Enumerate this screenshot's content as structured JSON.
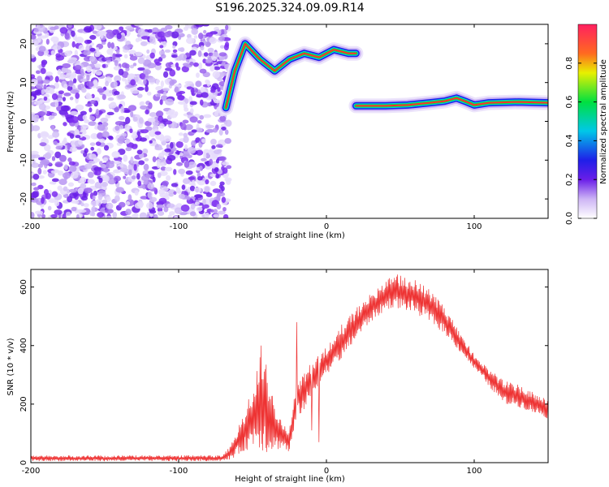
{
  "title": "S196.2025.324.09.09.R14",
  "colors": {
    "snr_line": "#ee3333",
    "cmap": [
      "#ffffff",
      "#d8c8f8",
      "#7b2cf0",
      "#1f1fe8",
      "#00c0e0",
      "#00e040",
      "#f0f000",
      "#ff3030"
    ]
  },
  "chart_data": [
    {
      "type": "heatmap",
      "xlabel": "Height of straight line (km)",
      "ylabel": "Frequency (Hz)",
      "xlim": [
        -200,
        150
      ],
      "ylim": [
        -25,
        25
      ],
      "xticks": [
        -200,
        -100,
        0,
        100
      ],
      "yticks": [
        -20,
        -10,
        0,
        10,
        20
      ],
      "colorbar": {
        "label": "Normalized spectral amplitude",
        "range": [
          0,
          1
        ],
        "ticks": [
          "0.0",
          "0.2",
          "0.4",
          "0.6",
          "0.8"
        ]
      },
      "noise_region_x": [
        -200,
        -70
      ],
      "signal_tracks": [
        {
          "name": "upper",
          "points": [
            [
              -68,
              3.5
            ],
            [
              -62,
              13
            ],
            [
              -55,
              20
            ],
            [
              -45,
              16
            ],
            [
              -35,
              13
            ],
            [
              -25,
              16
            ],
            [
              -15,
              17.5
            ],
            [
              -5,
              16.5
            ],
            [
              5,
              18.5
            ],
            [
              15,
              17.5
            ],
            [
              20,
              17.5
            ]
          ]
        },
        {
          "name": "lower",
          "points": [
            [
              20,
              4
            ],
            [
              30,
              4
            ],
            [
              40,
              4
            ],
            [
              55,
              4.2
            ],
            [
              70,
              4.8
            ],
            [
              80,
              5.2
            ],
            [
              88,
              6
            ],
            [
              95,
              5
            ],
            [
              100,
              4.2
            ],
            [
              110,
              4.8
            ],
            [
              130,
              5
            ],
            [
              150,
              4.8
            ]
          ]
        }
      ]
    },
    {
      "type": "line",
      "xlabel": "Height of straight line (km)",
      "ylabel": "SNR (10 * v/v)",
      "xlim": [
        -200,
        150
      ],
      "ylim": [
        0,
        660
      ],
      "xticks": [
        -200,
        -100,
        0,
        100
      ],
      "yticks": [
        0,
        200,
        400,
        600
      ],
      "envelope": {
        "x": [
          -200,
          -70,
          -65,
          -55,
          -48,
          -44,
          -40,
          -35,
          -30,
          -25,
          -20,
          -15,
          -10,
          -5,
          0,
          5,
          10,
          20,
          30,
          40,
          45,
          50,
          60,
          70,
          80,
          90,
          100,
          110,
          120,
          130,
          140,
          150
        ],
        "min": [
          5,
          5,
          10,
          40,
          60,
          40,
          30,
          40,
          50,
          30,
          150,
          180,
          220,
          260,
          300,
          330,
          350,
          420,
          480,
          520,
          530,
          525,
          510,
          480,
          440,
          380,
          320,
          260,
          200,
          190,
          170,
          150
        ],
        "max": [
          25,
          25,
          60,
          180,
          300,
          430,
          320,
          200,
          150,
          120,
          280,
          320,
          350,
          380,
          400,
          420,
          470,
          530,
          580,
          620,
          650,
          640,
          630,
          590,
          530,
          450,
          370,
          320,
          280,
          270,
          240,
          220
        ]
      },
      "spikes": [
        [
          -20,
          480
        ],
        [
          -5,
          70
        ],
        [
          -10,
          110
        ],
        [
          -45,
          360
        ]
      ]
    }
  ]
}
